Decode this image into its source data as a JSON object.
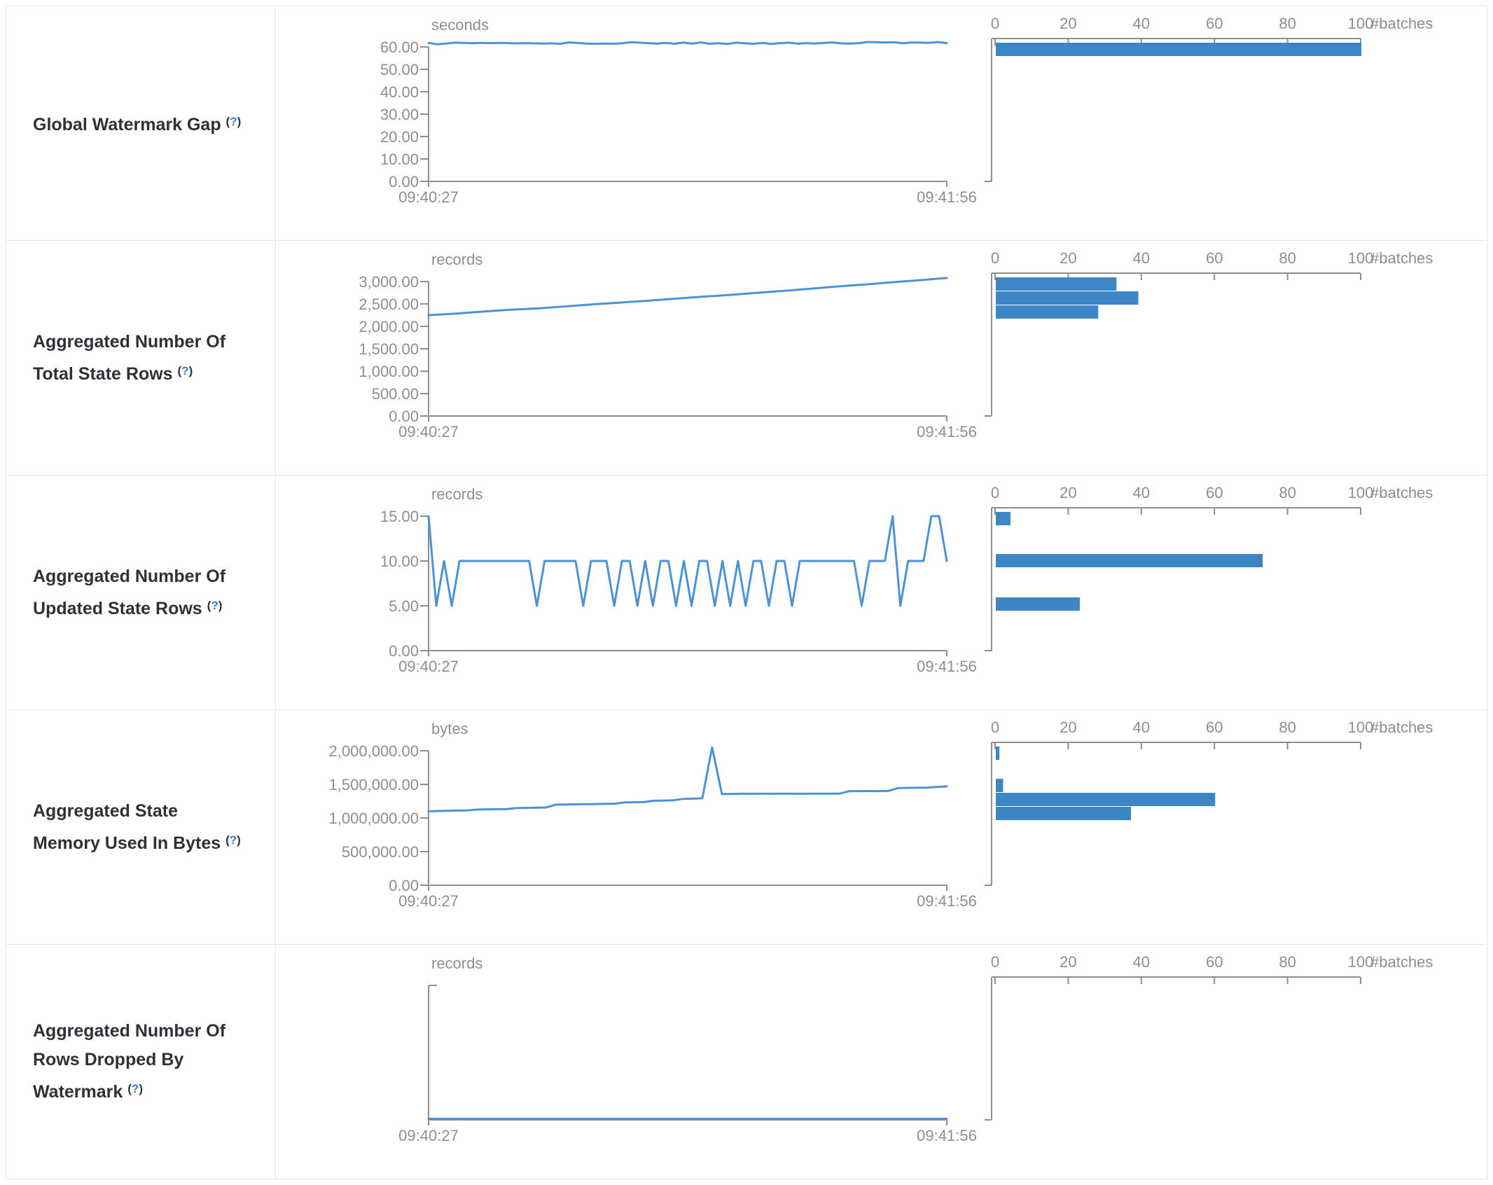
{
  "colors": {
    "border": "#e5e5e5",
    "label_dark": "#2d3238",
    "help_blue": "#2d7dd2",
    "axis_gray": "#8f8f8f",
    "tick_text_gray": "#8e8e8e",
    "line_blue": "#4b92d6",
    "bar_blue": "#3d86c6"
  },
  "help_marker": {
    "prefix": "(",
    "symbol": "?",
    "suffix": ")"
  },
  "chart_data": [
    {
      "metric": "Global Watermark Gap",
      "timeline": {
        "type": "line",
        "unit": "seconds",
        "x_start": "09:40:27",
        "x_end": "09:41:56",
        "y_tick_labels": [
          "60.00",
          "50.00",
          "40.00",
          "30.00",
          "20.00",
          "10.00",
          "0.00"
        ],
        "y_top_value": 60,
        "values": [
          61.8,
          61.2,
          61.5,
          61.9,
          61.8,
          61.7,
          61.8,
          61.7,
          61.8,
          61.7,
          61.6,
          61.7,
          61.6,
          61.5,
          61.6,
          61.4,
          62.0,
          61.8,
          61.5,
          61.4,
          61.5,
          61.4,
          61.6,
          62.1,
          61.9,
          61.7,
          61.5,
          61.8,
          61.4,
          61.9,
          61.5,
          62.0,
          61.4,
          61.7,
          61.3,
          61.9,
          61.6,
          61.4,
          61.8,
          61.3,
          61.7,
          61.9,
          61.5,
          61.7,
          61.5,
          61.8,
          62.0,
          61.6,
          61.5,
          61.7,
          62.2,
          62.1,
          62.0,
          62.1,
          61.6,
          62.0,
          61.9,
          61.8,
          62.2,
          61.7
        ]
      },
      "histogram": {
        "type": "bar",
        "unit": "#batches",
        "tick_labels": [
          "0",
          "20",
          "40",
          "60",
          "80",
          "100"
        ],
        "x_max": 100,
        "bars": [
          {
            "count": 100,
            "offset": 2
          }
        ]
      }
    },
    {
      "metric": "Aggregated Number Of Total State Rows",
      "timeline": {
        "type": "line",
        "unit": "records",
        "x_start": "09:40:27",
        "x_end": "09:41:56",
        "y_tick_labels": [
          "3,000.00",
          "2,500.00",
          "2,000.00",
          "1,500.00",
          "1,000.00",
          "500.00",
          "0.00"
        ],
        "y_top_value": 3000,
        "values": [
          2250,
          2285,
          2330,
          2370,
          2400,
          2445,
          2490,
          2530,
          2570,
          2615,
          2660,
          2700,
          2745,
          2790,
          2840,
          2890,
          2935,
          2985,
          3030,
          3080
        ]
      },
      "histogram": {
        "type": "bar",
        "unit": "#batches",
        "tick_labels": [
          "0",
          "20",
          "40",
          "60",
          "80",
          "100"
        ],
        "x_max": 100,
        "bars": [
          {
            "count": 33,
            "offset": 2
          },
          {
            "count": 39,
            "offset": 22
          },
          {
            "count": 28,
            "offset": 42
          }
        ]
      }
    },
    {
      "metric": "Aggregated Number Of Updated State Rows",
      "timeline": {
        "type": "line",
        "unit": "records",
        "x_start": "09:40:27",
        "x_end": "09:41:56",
        "y_tick_labels": [
          "15.00",
          "10.00",
          "5.00",
          "0.00"
        ],
        "y_top_value": 15,
        "values": [
          15,
          5,
          10,
          5,
          10,
          10,
          10,
          10,
          10,
          10,
          10,
          10,
          10,
          10,
          5,
          10,
          10,
          10,
          10,
          10,
          5,
          10,
          10,
          10,
          5,
          10,
          10,
          5,
          10,
          5,
          10,
          10,
          5,
          10,
          5,
          10,
          10,
          5,
          10,
          5,
          10,
          5,
          10,
          10,
          5,
          10,
          10,
          5,
          10,
          10,
          10,
          10,
          10,
          10,
          10,
          10,
          5,
          10,
          10,
          10,
          15,
          5,
          10,
          10,
          10,
          15,
          15,
          10
        ]
      },
      "histogram": {
        "type": "bar",
        "unit": "#batches",
        "tick_labels": [
          "0",
          "20",
          "40",
          "60",
          "80",
          "100"
        ],
        "x_max": 100,
        "bars": [
          {
            "count": 4,
            "offset": 2
          },
          {
            "count": 73,
            "offset": 62
          },
          {
            "count": 23,
            "offset": 124
          }
        ]
      }
    },
    {
      "metric": "Aggregated State Memory Used In Bytes",
      "timeline": {
        "type": "line",
        "unit": "bytes",
        "x_start": "09:40:27",
        "x_end": "09:41:56",
        "y_tick_labels": [
          "2,000,000.00",
          "1,500,000.00",
          "1,000,000.00",
          "500,000.00",
          "0.00"
        ],
        "y_top_value": 2000000,
        "values": [
          1100000,
          1104000,
          1108000,
          1111000,
          1114000,
          1126000,
          1129000,
          1131000,
          1133000,
          1149000,
          1151000,
          1153000,
          1156000,
          1199000,
          1201000,
          1203000,
          1205000,
          1207000,
          1209000,
          1212000,
          1231000,
          1234000,
          1237000,
          1256000,
          1259000,
          1263000,
          1284000,
          1288000,
          1293000,
          2050000,
          1356000,
          1358000,
          1360000,
          1360000,
          1361000,
          1360000,
          1362000,
          1361000,
          1360000,
          1362000,
          1361000,
          1363000,
          1362000,
          1398000,
          1400000,
          1401000,
          1400000,
          1402000,
          1445000,
          1448000,
          1450000,
          1452000,
          1462000,
          1470000
        ]
      },
      "histogram": {
        "type": "bar",
        "unit": "#batches",
        "tick_labels": [
          "0",
          "20",
          "40",
          "60",
          "80",
          "100"
        ],
        "x_max": 100,
        "bars": [
          {
            "count": 1,
            "offset": 2
          },
          {
            "count": 2,
            "offset": 48
          },
          {
            "count": 60,
            "offset": 68
          },
          {
            "count": 37,
            "offset": 88
          }
        ]
      }
    },
    {
      "metric": "Aggregated Number Of Rows Dropped By Watermark",
      "timeline": {
        "type": "line",
        "unit": "records",
        "x_start": "09:40:27",
        "x_end": "09:41:56",
        "y_tick_labels": [],
        "y_top_value": null,
        "values": [
          0,
          0
        ]
      },
      "histogram": {
        "type": "bar",
        "unit": "#batches",
        "tick_labels": [
          "0",
          "20",
          "40",
          "60",
          "80",
          "100"
        ],
        "x_max": 100,
        "bars": []
      }
    }
  ]
}
